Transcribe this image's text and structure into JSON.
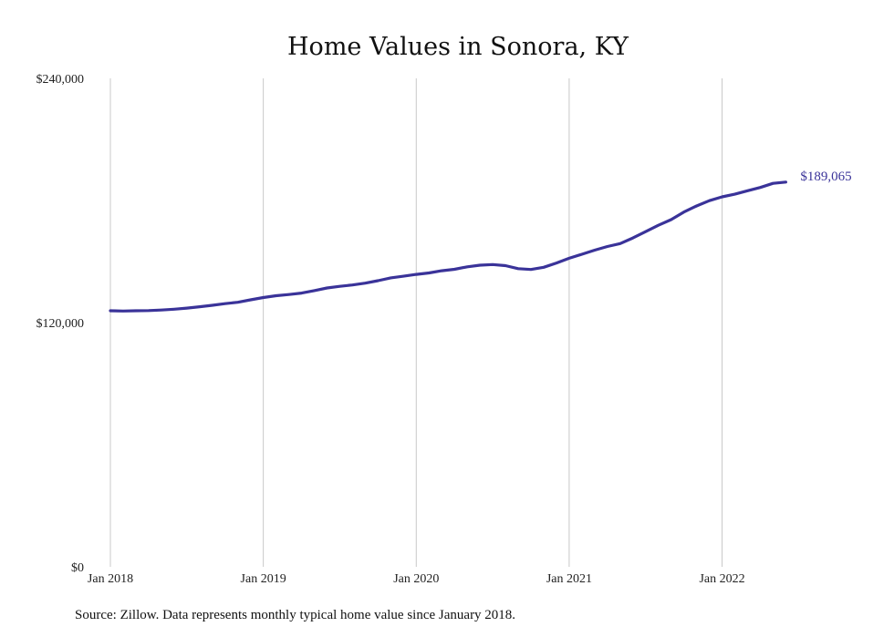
{
  "chart_data": {
    "type": "line",
    "title": "Home Values in Sonora, KY",
    "xlabel": "",
    "ylabel": "",
    "x_ticks": [
      "Jan 2018",
      "Jan 2019",
      "Jan 2020",
      "Jan 2021",
      "Jan 2022"
    ],
    "y_ticks": [
      "$0",
      "$120,000",
      "$240,000"
    ],
    "ylim": [
      0,
      240000
    ],
    "xlim": [
      "2018-01",
      "2022-07"
    ],
    "grid": "vertical",
    "line_color": "#3a3399",
    "end_label": "$189,065",
    "series": [
      {
        "x": [
          "2018-01",
          "2018-02",
          "2018-03",
          "2018-04",
          "2018-05",
          "2018-06",
          "2018-07",
          "2018-08",
          "2018-09",
          "2018-10",
          "2018-11",
          "2018-12",
          "2019-01",
          "2019-02",
          "2019-03",
          "2019-04",
          "2019-05",
          "2019-06",
          "2019-07",
          "2019-08",
          "2019-09",
          "2019-10",
          "2019-11",
          "2019-12",
          "2020-01",
          "2020-02",
          "2020-03",
          "2020-04",
          "2020-05",
          "2020-06",
          "2020-07",
          "2020-08",
          "2020-09",
          "2020-10",
          "2020-11",
          "2020-12",
          "2021-01",
          "2021-02",
          "2021-03",
          "2021-04",
          "2021-05",
          "2021-06",
          "2021-07",
          "2021-08",
          "2021-09",
          "2021-10",
          "2021-11",
          "2021-12",
          "2022-01",
          "2022-02",
          "2022-03",
          "2022-04",
          "2022-05",
          "2022-06"
        ],
        "values": [
          125800,
          125700,
          125800,
          125900,
          126200,
          126600,
          127100,
          127800,
          128500,
          129300,
          130000,
          131200,
          132300,
          133200,
          133800,
          134500,
          135700,
          137000,
          137800,
          138500,
          139400,
          140600,
          142000,
          142800,
          143700,
          144400,
          145500,
          146200,
          147400,
          148200,
          148500,
          148000,
          146500,
          146100,
          147200,
          149300,
          151600,
          153600,
          155600,
          157400,
          158800,
          161600,
          164700,
          167800,
          170600,
          174300,
          177300,
          179900,
          181800,
          183100,
          184800,
          186400,
          188400,
          189065
        ]
      }
    ]
  },
  "footer": {
    "source": "Source: Zillow. Data represents monthly typical home value since January 2018."
  }
}
